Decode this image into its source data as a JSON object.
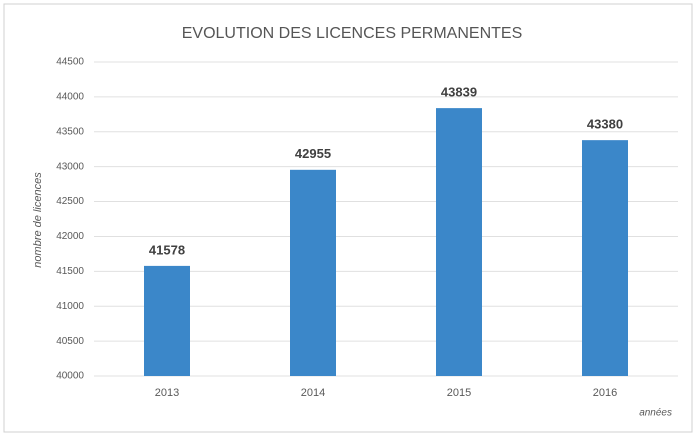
{
  "chart_data": {
    "type": "bar",
    "title": "EVOLUTION DES LICENCES PERMANENTES",
    "y_label": "nombre de licences",
    "x_label": "années",
    "categories": [
      "2013",
      "2014",
      "2015",
      "2016"
    ],
    "values": [
      41578,
      42955,
      43839,
      43380
    ],
    "color": "#3b87c9",
    "ylim": [
      40000,
      44500
    ],
    "yticks": [
      40000,
      40500,
      41000,
      41500,
      42000,
      42500,
      43000,
      43500,
      44000,
      44500
    ],
    "grid": true
  }
}
